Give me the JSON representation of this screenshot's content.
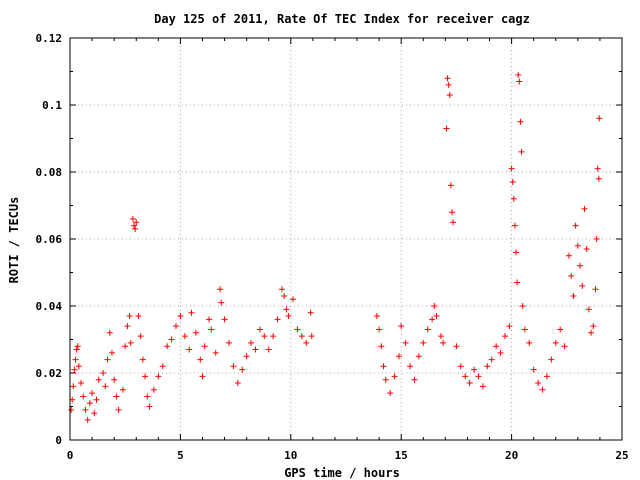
{
  "chart_data": {
    "type": "scatter",
    "title": "Day 125 of 2011, Rate Of TEC Index for receiver cagz",
    "xlabel": "GPS time / hours",
    "ylabel": "ROTI / TECUs",
    "xlim": [
      0,
      25
    ],
    "ylim": [
      0,
      0.12
    ],
    "x_ticks": [
      "0",
      "5",
      "10",
      "15",
      "20",
      "25"
    ],
    "y_ticks": [
      "0",
      "0.02",
      "0.04",
      "0.06",
      "0.08",
      "0.1",
      "0.12"
    ],
    "grid": true,
    "legend": "none",
    "marker": "plus",
    "color": "#ff0000",
    "data_gap_hours": [
      11.0,
      13.9
    ],
    "points": [
      [
        0.05,
        0.009
      ],
      [
        0.1,
        0.012
      ],
      [
        0.15,
        0.016
      ],
      [
        0.2,
        0.021
      ],
      [
        0.25,
        0.024
      ],
      [
        0.3,
        0.027
      ],
      [
        0.35,
        0.028
      ],
      [
        0.4,
        0.022
      ],
      [
        0.5,
        0.017
      ],
      [
        0.6,
        0.013
      ],
      [
        0.7,
        0.009
      ],
      [
        0.8,
        0.006
      ],
      [
        0.9,
        0.011
      ],
      [
        1.0,
        0.014
      ],
      [
        1.1,
        0.008
      ],
      [
        1.2,
        0.012
      ],
      [
        1.3,
        0.018
      ],
      [
        1.5,
        0.02
      ],
      [
        1.6,
        0.016
      ],
      [
        1.7,
        0.024
      ],
      [
        1.8,
        0.032
      ],
      [
        1.9,
        0.026
      ],
      [
        2.0,
        0.018
      ],
      [
        2.1,
        0.013
      ],
      [
        2.2,
        0.009
      ],
      [
        2.4,
        0.015
      ],
      [
        2.5,
        0.028
      ],
      [
        2.6,
        0.034
      ],
      [
        2.7,
        0.037
      ],
      [
        2.75,
        0.029
      ],
      [
        2.85,
        0.066
      ],
      [
        2.9,
        0.064
      ],
      [
        2.95,
        0.063
      ],
      [
        3.0,
        0.065
      ],
      [
        3.1,
        0.037
      ],
      [
        3.2,
        0.031
      ],
      [
        3.3,
        0.024
      ],
      [
        3.4,
        0.019
      ],
      [
        3.5,
        0.013
      ],
      [
        3.6,
        0.01
      ],
      [
        3.8,
        0.015
      ],
      [
        4.0,
        0.019
      ],
      [
        4.2,
        0.022
      ],
      [
        4.4,
        0.028
      ],
      [
        4.6,
        0.03
      ],
      [
        4.8,
        0.034
      ],
      [
        5.0,
        0.037
      ],
      [
        5.2,
        0.031
      ],
      [
        5.4,
        0.027
      ],
      [
        5.5,
        0.038
      ],
      [
        5.7,
        0.032
      ],
      [
        5.9,
        0.024
      ],
      [
        6.0,
        0.019
      ],
      [
        6.1,
        0.028
      ],
      [
        6.3,
        0.036
      ],
      [
        6.4,
        0.033
      ],
      [
        6.6,
        0.026
      ],
      [
        6.8,
        0.045
      ],
      [
        6.85,
        0.041
      ],
      [
        7.0,
        0.036
      ],
      [
        7.2,
        0.029
      ],
      [
        7.4,
        0.022
      ],
      [
        7.6,
        0.017
      ],
      [
        7.8,
        0.021
      ],
      [
        8.0,
        0.025
      ],
      [
        8.2,
        0.029
      ],
      [
        8.4,
        0.027
      ],
      [
        8.6,
        0.033
      ],
      [
        8.8,
        0.031
      ],
      [
        9.0,
        0.027
      ],
      [
        9.2,
        0.031
      ],
      [
        9.4,
        0.036
      ],
      [
        9.6,
        0.045
      ],
      [
        9.7,
        0.043
      ],
      [
        9.8,
        0.039
      ],
      [
        9.9,
        0.037
      ],
      [
        10.1,
        0.042
      ],
      [
        10.3,
        0.033
      ],
      [
        10.5,
        0.031
      ],
      [
        10.7,
        0.029
      ],
      [
        10.9,
        0.038
      ],
      [
        10.95,
        0.031
      ],
      [
        13.9,
        0.037
      ],
      [
        14.0,
        0.033
      ],
      [
        14.1,
        0.028
      ],
      [
        14.2,
        0.022
      ],
      [
        14.3,
        0.018
      ],
      [
        14.5,
        0.014
      ],
      [
        14.7,
        0.019
      ],
      [
        14.9,
        0.025
      ],
      [
        15.0,
        0.034
      ],
      [
        15.2,
        0.029
      ],
      [
        15.4,
        0.022
      ],
      [
        15.6,
        0.018
      ],
      [
        15.8,
        0.025
      ],
      [
        16.0,
        0.029
      ],
      [
        16.2,
        0.033
      ],
      [
        16.4,
        0.036
      ],
      [
        16.5,
        0.04
      ],
      [
        16.6,
        0.037
      ],
      [
        16.8,
        0.031
      ],
      [
        16.9,
        0.029
      ],
      [
        17.05,
        0.093
      ],
      [
        17.1,
        0.108
      ],
      [
        17.15,
        0.106
      ],
      [
        17.2,
        0.103
      ],
      [
        17.25,
        0.076
      ],
      [
        17.3,
        0.068
      ],
      [
        17.35,
        0.065
      ],
      [
        17.5,
        0.028
      ],
      [
        17.7,
        0.022
      ],
      [
        17.9,
        0.019
      ],
      [
        18.1,
        0.017
      ],
      [
        18.3,
        0.021
      ],
      [
        18.5,
        0.019
      ],
      [
        18.7,
        0.016
      ],
      [
        18.9,
        0.022
      ],
      [
        19.1,
        0.024
      ],
      [
        19.3,
        0.028
      ],
      [
        19.5,
        0.026
      ],
      [
        19.7,
        0.031
      ],
      [
        19.9,
        0.034
      ],
      [
        20.0,
        0.081
      ],
      [
        20.05,
        0.077
      ],
      [
        20.1,
        0.072
      ],
      [
        20.15,
        0.064
      ],
      [
        20.2,
        0.056
      ],
      [
        20.25,
        0.047
      ],
      [
        20.3,
        0.109
      ],
      [
        20.35,
        0.107
      ],
      [
        20.4,
        0.095
      ],
      [
        20.45,
        0.086
      ],
      [
        20.5,
        0.04
      ],
      [
        20.6,
        0.033
      ],
      [
        20.8,
        0.029
      ],
      [
        21.0,
        0.021
      ],
      [
        21.2,
        0.017
      ],
      [
        21.4,
        0.015
      ],
      [
        21.6,
        0.019
      ],
      [
        21.8,
        0.024
      ],
      [
        22.0,
        0.029
      ],
      [
        22.2,
        0.033
      ],
      [
        22.4,
        0.028
      ],
      [
        22.6,
        0.055
      ],
      [
        22.7,
        0.049
      ],
      [
        22.8,
        0.043
      ],
      [
        22.9,
        0.064
      ],
      [
        23.0,
        0.058
      ],
      [
        23.1,
        0.052
      ],
      [
        23.2,
        0.046
      ],
      [
        23.3,
        0.069
      ],
      [
        23.4,
        0.057
      ],
      [
        23.5,
        0.039
      ],
      [
        23.6,
        0.032
      ],
      [
        23.7,
        0.034
      ],
      [
        23.8,
        0.045
      ],
      [
        23.85,
        0.06
      ],
      [
        23.9,
        0.081
      ],
      [
        23.95,
        0.078
      ],
      [
        23.97,
        0.096
      ]
    ]
  }
}
